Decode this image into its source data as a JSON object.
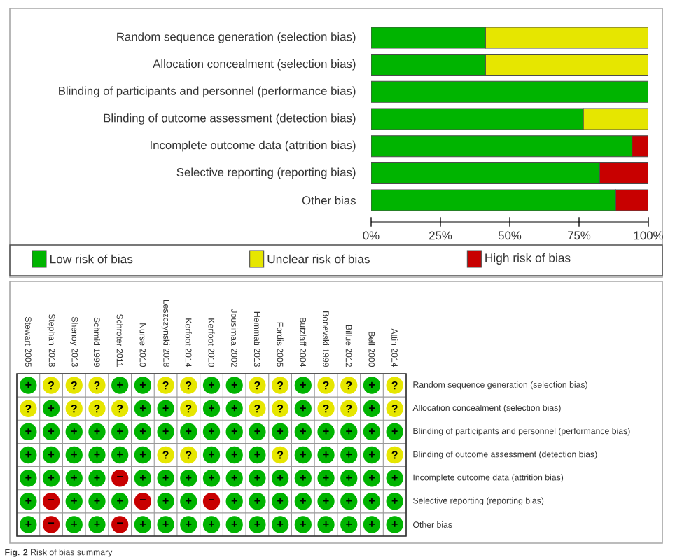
{
  "chart_data": [
    {
      "type": "bar",
      "orientation": "horizontal",
      "stacked": true,
      "categories": [
        "Random sequence generation (selection bias)",
        "Allocation concealment (selection bias)",
        "Blinding of participants and personnel (performance bias)",
        "Blinding of outcome assessment (detection bias)",
        "Incomplete outcome data (attrition bias)",
        "Selective reporting (reporting bias)",
        "Other bias"
      ],
      "series": [
        {
          "name": "Low risk of bias",
          "color": "#00b400",
          "values": [
            41.2,
            41.2,
            100,
            76.5,
            94.1,
            82.4,
            88.2
          ]
        },
        {
          "name": "Unclear risk of bias",
          "color": "#e6e600",
          "values": [
            58.8,
            58.8,
            0,
            23.5,
            0,
            0,
            0
          ]
        },
        {
          "name": "High risk of bias",
          "color": "#c80000",
          "values": [
            0,
            0,
            0,
            0,
            5.9,
            17.6,
            11.8
          ]
        }
      ],
      "xlim": [
        0,
        100
      ],
      "xticks": [
        {
          "value": 0,
          "label": "0%"
        },
        {
          "value": 25,
          "label": "25%"
        },
        {
          "value": 50,
          "label": "50%"
        },
        {
          "value": 75,
          "label": "75%"
        },
        {
          "value": 100,
          "label": "100%"
        }
      ],
      "legend": "bottom"
    },
    {
      "type": "heatmap",
      "categories": [
        "Stewart 2005",
        "Stephan 2018",
        "Shenoy 2013",
        "Schmid 1999",
        "Schroter 2011",
        "Nurse 2010",
        "Leszczynski 2018",
        "Kerfoot 2014",
        "Kerfoot 2010",
        "Jousimaa 2002",
        "Hemmati 2013",
        "Fordis 2005",
        "Butzlaff 2004",
        "Bonevski 1999",
        "Billue 2012",
        "Bell 2000",
        "Attin 2014"
      ],
      "y_categories": [
        "Random sequence generation (selection bias)",
        "Allocation concealment (selection bias)",
        "Blinding of participants and personnel (performance bias)",
        "Blinding of outcome assessment (detection bias)",
        "Incomplete outcome data (attrition bias)",
        "Selective reporting (reporting bias)",
        "Other bias"
      ],
      "cells": [
        [
          "+",
          "?",
          "?",
          "?",
          "+",
          "+",
          "?",
          "?",
          "+",
          "+",
          "?",
          "?",
          "+",
          "?",
          "?",
          "+",
          "?"
        ],
        [
          "?",
          "+",
          "?",
          "?",
          "?",
          "+",
          "+",
          "?",
          "+",
          "+",
          "?",
          "?",
          "+",
          "?",
          "?",
          "+",
          "?"
        ],
        [
          "+",
          "+",
          "+",
          "+",
          "+",
          "+",
          "+",
          "+",
          "+",
          "+",
          "+",
          "+",
          "+",
          "+",
          "+",
          "+",
          "+"
        ],
        [
          "+",
          "+",
          "+",
          "+",
          "+",
          "+",
          "?",
          "?",
          "+",
          "+",
          "+",
          "?",
          "+",
          "+",
          "+",
          "+",
          "?"
        ],
        [
          "+",
          "+",
          "+",
          "+",
          "−",
          "+",
          "+",
          "+",
          "+",
          "+",
          "+",
          "+",
          "+",
          "+",
          "+",
          "+",
          "+"
        ],
        [
          "+",
          "−",
          "+",
          "+",
          "+",
          "−",
          "+",
          "+",
          "−",
          "+",
          "+",
          "+",
          "+",
          "+",
          "+",
          "+",
          "+"
        ],
        [
          "+",
          "−",
          "+",
          "+",
          "−",
          "+",
          "+",
          "+",
          "+",
          "+",
          "+",
          "+",
          "+",
          "+",
          "+",
          "+",
          "+"
        ]
      ],
      "grid": true,
      "annotations": [
        "**Fig. 2** Risk of bias summary"
      ]
    }
  ]
}
